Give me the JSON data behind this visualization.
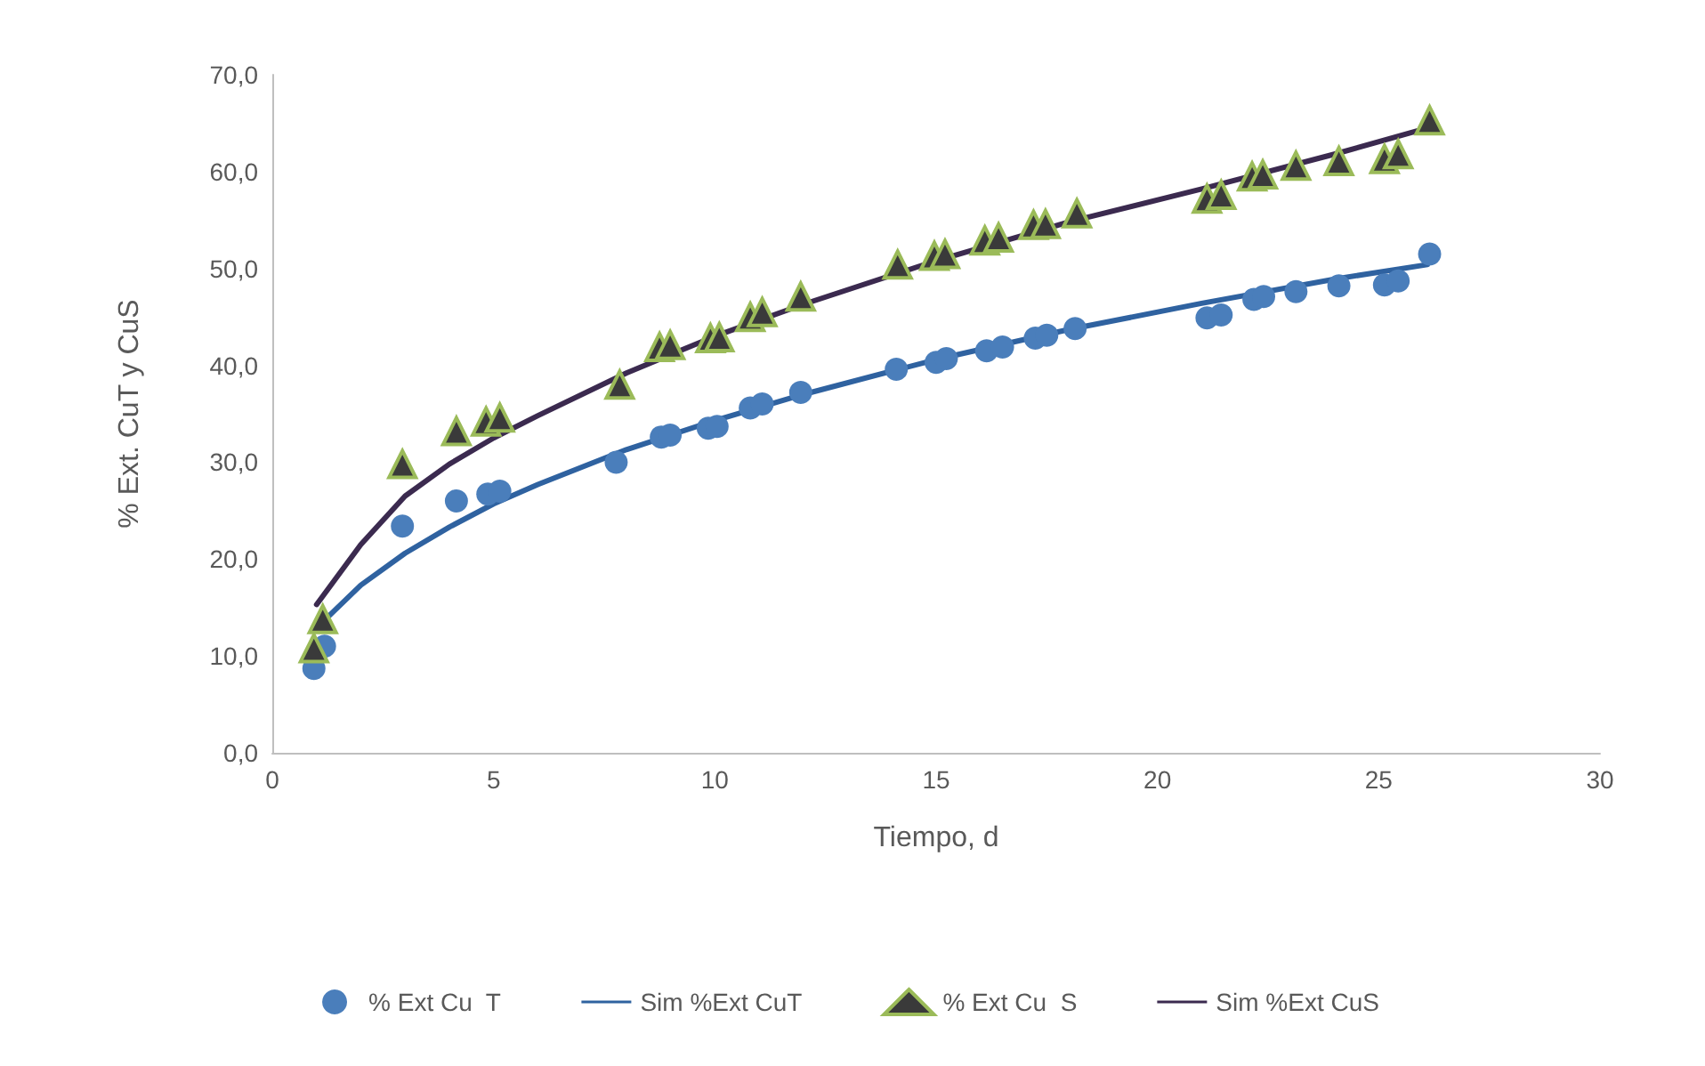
{
  "chart_data": {
    "type": "scatter",
    "xlabel": "Tiempo, d",
    "ylabel": "% Ext. CuT y CuS",
    "xlim": [
      0,
      30
    ],
    "xticks": [
      0,
      5,
      10,
      15,
      20,
      25,
      30
    ],
    "ylim": [
      0,
      70
    ],
    "yticks": [
      {
        "value": 0,
        "label": "0,0"
      },
      {
        "value": 10,
        "label": "10,0"
      },
      {
        "value": 20,
        "label": "20,0"
      },
      {
        "value": 30,
        "label": "30,0"
      },
      {
        "value": 40,
        "label": "40,0"
      },
      {
        "value": 50,
        "label": "50,0"
      },
      {
        "value": 60,
        "label": "60,0"
      },
      {
        "value": 70,
        "label": "70,0"
      }
    ],
    "grid": false,
    "legend": "bottom",
    "series": [
      {
        "name": "% Ext Cu  T",
        "type": "scatter",
        "marker": "circle",
        "color": "#4a7ebb",
        "x": [
          0.94,
          1.18,
          2.94,
          4.16,
          4.87,
          5.14,
          7.77,
          8.79,
          8.99,
          9.85,
          10.05,
          10.8,
          11.07,
          11.94,
          14.1,
          15.0,
          15.23,
          16.14,
          16.5,
          17.24,
          17.5,
          18.14,
          21.12,
          21.44,
          22.18,
          22.4,
          23.13,
          24.1,
          25.13,
          25.44,
          26.15
        ],
        "values": [
          8.7,
          11.0,
          23.4,
          26.0,
          26.7,
          27.0,
          30.0,
          32.6,
          32.8,
          33.5,
          33.7,
          35.6,
          36.0,
          37.2,
          39.6,
          40.3,
          40.7,
          41.5,
          41.9,
          42.8,
          43.1,
          43.8,
          44.9,
          45.2,
          46.8,
          47.1,
          47.6,
          48.2,
          48.3,
          48.7,
          51.5
        ]
      },
      {
        "name": "Sim %Ext CuT",
        "type": "line",
        "marker": "none",
        "line_style": "solid",
        "color": "#2f62a0",
        "x": [
          1,
          2,
          3,
          4,
          5,
          6,
          8,
          10,
          12,
          15,
          18,
          21,
          24,
          26.1
        ],
        "values": [
          12.9,
          17.3,
          20.6,
          23.3,
          25.7,
          27.7,
          31.3,
          34.3,
          37.0,
          40.6,
          43.7,
          46.4,
          48.9,
          50.4
        ]
      },
      {
        "name": "% Ext Cu  S",
        "type": "scatter",
        "marker": "triangle",
        "color": "#3a3a3a",
        "x": [
          0.94,
          1.14,
          2.94,
          4.16,
          4.83,
          5.14,
          7.85,
          8.75,
          8.99,
          9.9,
          10.1,
          10.8,
          11.07,
          11.94,
          14.13,
          14.96,
          15.2,
          16.1,
          16.41,
          17.2,
          17.47,
          18.18,
          21.12,
          21.44,
          22.14,
          22.38,
          23.13,
          24.1,
          25.13,
          25.44,
          26.15
        ],
        "values": [
          10.8,
          13.8,
          29.8,
          33.2,
          34.2,
          34.6,
          38.0,
          41.9,
          42.1,
          42.8,
          42.9,
          45.0,
          45.5,
          47.1,
          50.4,
          51.3,
          51.5,
          52.9,
          53.2,
          54.5,
          54.6,
          55.7,
          57.2,
          57.6,
          59.5,
          59.7,
          60.6,
          61.1,
          61.3,
          61.8,
          65.3
        ]
      },
      {
        "name": "Sim %Ext CuS",
        "type": "line",
        "marker": "none",
        "line_style": "solid",
        "color": "#3b2a4f",
        "x": [
          1,
          2,
          3,
          4,
          5,
          6,
          8,
          10,
          12,
          15,
          18,
          21,
          24,
          26.1
        ],
        "values": [
          15.3,
          21.5,
          26.5,
          29.8,
          32.5,
          34.8,
          39.2,
          43.0,
          46.3,
          50.8,
          54.8,
          58.2,
          61.8,
          64.5
        ]
      }
    ]
  }
}
